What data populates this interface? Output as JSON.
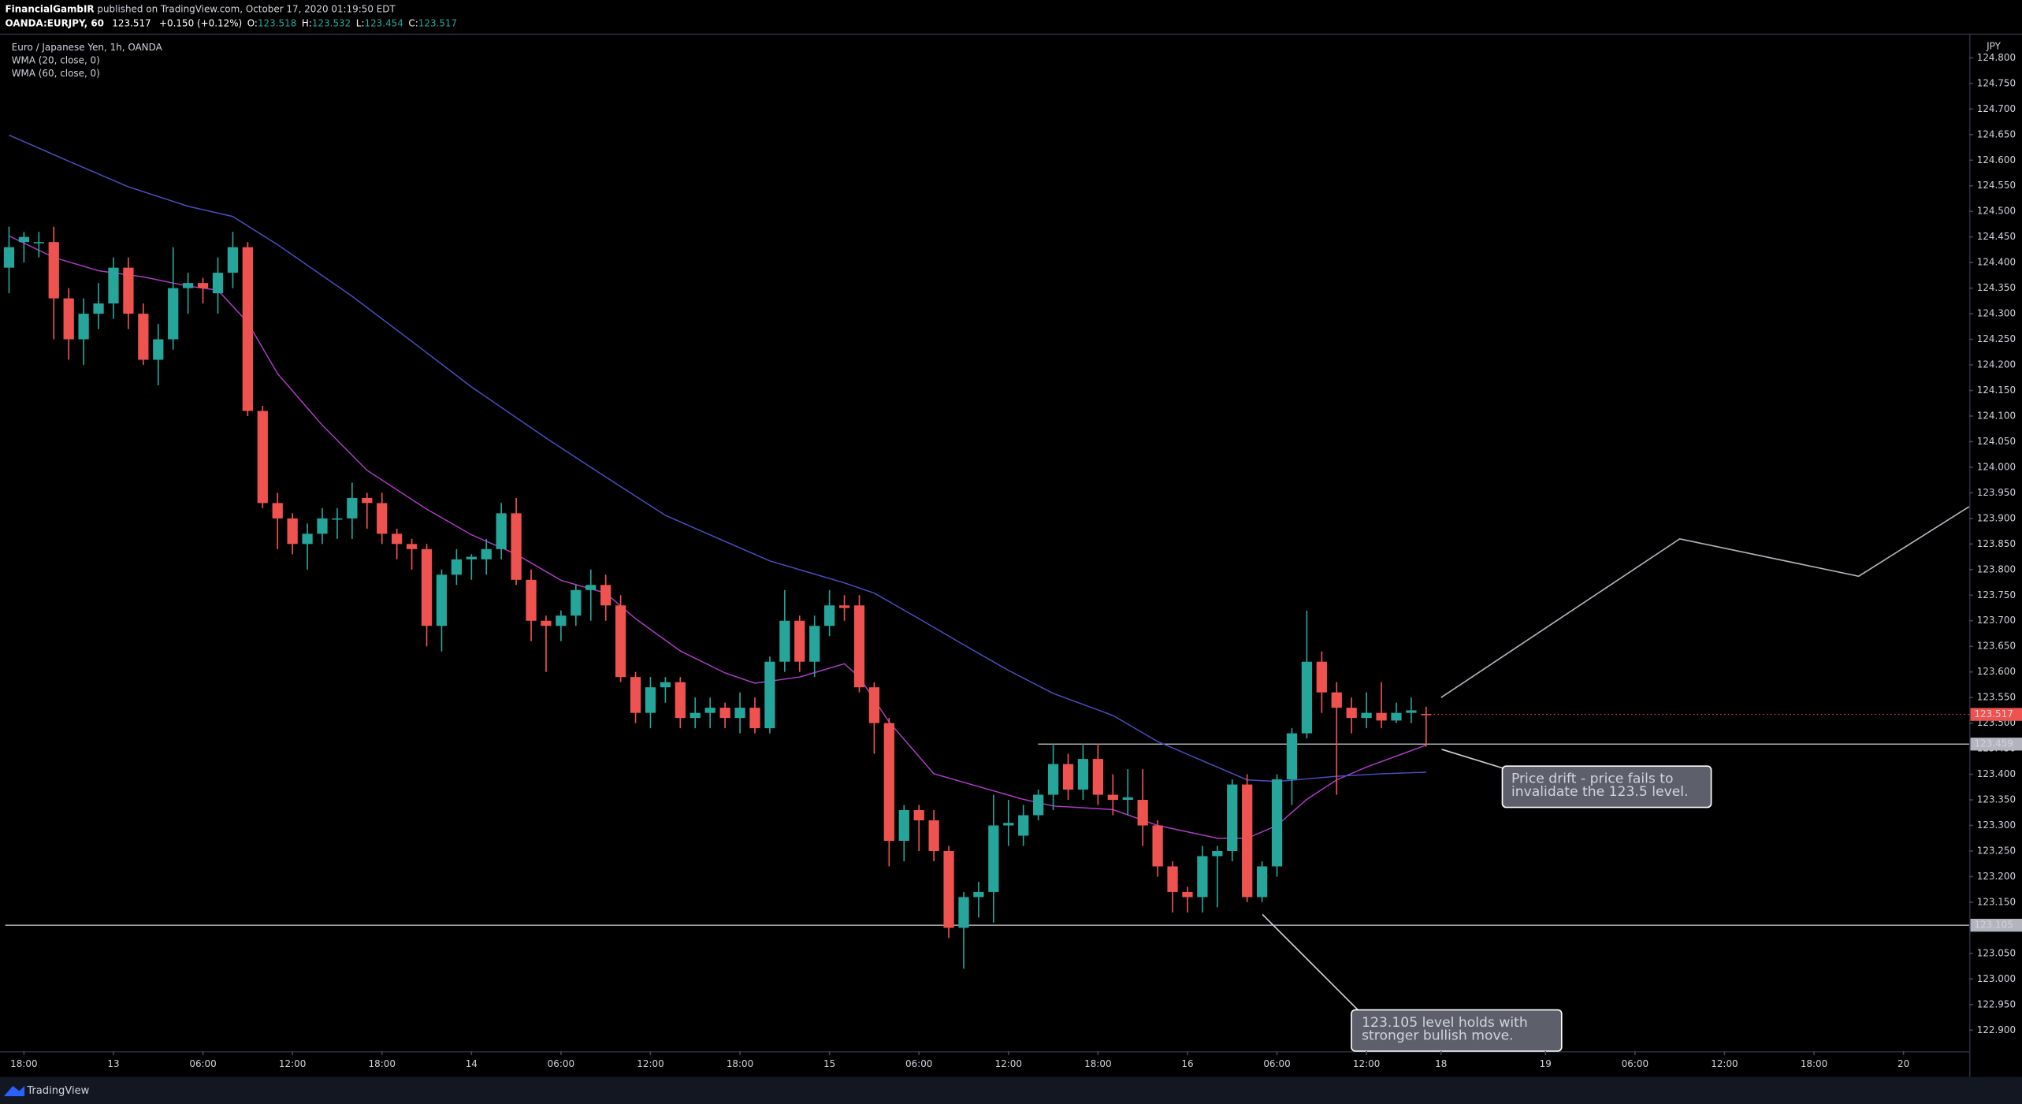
{
  "header": {
    "author": "FinancialGambIR",
    "published": "published on TradingView.com, October 17, 2020 01:19:50 EDT",
    "symbol": "OANDA:EURJPY, 60",
    "last": "123.517",
    "change": "+0.150 (+0.12%)",
    "ohlc": [
      [
        "O:",
        "123.518"
      ],
      [
        "H:",
        "123.532"
      ],
      [
        "L:",
        "123.454"
      ],
      [
        "C:",
        "123.517"
      ]
    ]
  },
  "footer": {
    "brand": "TradingView"
  },
  "chart_data": {
    "type": "candlestick",
    "title": "Euro / Japanese Yen, 1h, OANDA",
    "currency": "JPY",
    "up_color": "#26a69a",
    "down_color": "#ef5350",
    "grid": false,
    "x": [
      0,
      1,
      2,
      3,
      4,
      5,
      6,
      7,
      8,
      9,
      10,
      11,
      12,
      13,
      14,
      15,
      16,
      17,
      18,
      19,
      20,
      21,
      22,
      23,
      24,
      25,
      26,
      27,
      28,
      29,
      30,
      31,
      32,
      33,
      34,
      35,
      36,
      37,
      38,
      39,
      40,
      41,
      42,
      43,
      44,
      45,
      46,
      47,
      48,
      49,
      50,
      51,
      52,
      53,
      54,
      55,
      56,
      57,
      58,
      59,
      60,
      61,
      62,
      63,
      64,
      65,
      66,
      67,
      68,
      69,
      70,
      71,
      72,
      73,
      74,
      75,
      76,
      77,
      78,
      79,
      80,
      81,
      82,
      83,
      84,
      85,
      86,
      87,
      88,
      89,
      90,
      91,
      92,
      93,
      94,
      95
    ],
    "open": [
      124.39,
      124.44,
      124.44,
      124.44,
      124.33,
      124.25,
      124.3,
      124.32,
      124.39,
      124.3,
      124.21,
      124.25,
      124.35,
      124.36,
      124.34,
      124.38,
      124.43,
      124.11,
      123.93,
      123.9,
      123.85,
      123.87,
      123.9,
      123.9,
      123.94,
      123.93,
      123.87,
      123.85,
      123.84,
      123.69,
      123.79,
      123.82,
      123.82,
      123.84,
      123.91,
      123.78,
      123.7,
      123.69,
      123.71,
      123.76,
      123.77,
      123.73,
      123.59,
      123.52,
      123.57,
      123.58,
      123.51,
      123.52,
      123.53,
      123.51,
      123.53,
      123.49,
      123.62,
      123.7,
      123.62,
      123.69,
      123.73,
      123.73,
      123.57,
      123.5,
      123.27,
      123.33,
      123.31,
      123.25,
      123.1,
      123.16,
      123.17,
      123.3,
      123.28,
      123.32,
      123.36,
      123.42,
      123.37,
      123.43,
      123.36,
      123.35,
      123.35,
      123.3,
      123.22,
      123.17,
      123.16,
      123.24,
      123.25,
      123.38,
      123.16,
      123.22,
      123.39,
      123.48,
      123.62,
      123.56,
      123.53,
      123.51,
      123.52,
      123.505,
      123.52,
      123.518
    ],
    "high": [
      124.47,
      124.46,
      124.46,
      124.47,
      124.35,
      124.33,
      124.36,
      124.41,
      124.41,
      124.32,
      124.28,
      124.43,
      124.38,
      124.37,
      124.41,
      124.46,
      124.44,
      124.12,
      123.95,
      123.91,
      123.89,
      123.92,
      123.92,
      123.97,
      123.95,
      123.95,
      123.88,
      123.86,
      123.85,
      123.8,
      123.84,
      123.83,
      123.86,
      123.93,
      123.94,
      123.8,
      123.71,
      123.72,
      123.77,
      123.8,
      123.79,
      123.75,
      123.6,
      123.59,
      123.59,
      123.59,
      123.55,
      123.55,
      123.54,
      123.56,
      123.55,
      123.63,
      123.76,
      123.71,
      123.71,
      123.76,
      123.75,
      123.75,
      123.58,
      123.51,
      123.34,
      123.34,
      123.33,
      123.26,
      123.17,
      123.19,
      123.36,
      123.35,
      123.34,
      123.37,
      123.46,
      123.44,
      123.46,
      123.46,
      123.4,
      123.41,
      123.41,
      123.31,
      123.23,
      123.18,
      123.26,
      123.26,
      123.39,
      123.4,
      123.23,
      123.4,
      123.49,
      123.72,
      123.64,
      123.58,
      123.55,
      123.56,
      123.58,
      123.54,
      123.55,
      123.532
    ],
    "low": [
      124.34,
      124.4,
      124.41,
      124.25,
      124.21,
      124.2,
      124.27,
      124.29,
      124.27,
      124.2,
      124.16,
      124.23,
      124.3,
      124.32,
      124.3,
      124.35,
      124.1,
      123.92,
      123.84,
      123.83,
      123.8,
      123.85,
      123.86,
      123.86,
      123.88,
      123.85,
      123.82,
      123.8,
      123.65,
      123.64,
      123.77,
      123.78,
      123.79,
      123.82,
      123.77,
      123.66,
      123.6,
      123.66,
      123.69,
      123.7,
      123.7,
      123.58,
      123.5,
      123.49,
      123.54,
      123.49,
      123.49,
      123.49,
      123.49,
      123.48,
      123.48,
      123.48,
      123.6,
      123.6,
      123.59,
      123.67,
      123.7,
      123.56,
      123.44,
      123.22,
      123.23,
      123.25,
      123.23,
      123.08,
      123.02,
      123.12,
      123.11,
      123.26,
      123.26,
      123.31,
      123.33,
      123.35,
      123.35,
      123.34,
      123.32,
      123.32,
      123.26,
      123.2,
      123.13,
      123.13,
      123.13,
      123.14,
      123.23,
      123.15,
      123.15,
      123.2,
      123.34,
      123.47,
      123.52,
      123.36,
      123.48,
      123.49,
      123.49,
      123.5,
      123.5,
      123.454
    ],
    "close": [
      124.43,
      124.45,
      124.44,
      124.33,
      124.25,
      124.3,
      124.32,
      124.39,
      124.3,
      124.21,
      124.25,
      124.35,
      124.36,
      124.35,
      124.38,
      124.43,
      124.11,
      123.93,
      123.9,
      123.85,
      123.87,
      123.9,
      123.9,
      123.94,
      123.93,
      123.87,
      123.85,
      123.84,
      123.69,
      123.79,
      123.82,
      123.825,
      123.84,
      123.91,
      123.78,
      123.7,
      123.69,
      123.71,
      123.76,
      123.77,
      123.73,
      123.59,
      123.52,
      123.57,
      123.58,
      123.51,
      123.52,
      123.53,
      123.51,
      123.53,
      123.49,
      123.62,
      123.7,
      123.62,
      123.69,
      123.73,
      123.725,
      123.57,
      123.5,
      123.27,
      123.33,
      123.31,
      123.25,
      123.1,
      123.16,
      123.17,
      123.3,
      123.305,
      123.32,
      123.36,
      123.42,
      123.37,
      123.43,
      123.36,
      123.35,
      123.355,
      123.3,
      123.22,
      123.17,
      123.16,
      123.24,
      123.25,
      123.38,
      123.16,
      123.22,
      123.39,
      123.48,
      123.62,
      123.56,
      123.53,
      123.51,
      123.52,
      123.505,
      123.52,
      123.525,
      123.517
    ],
    "lines": [
      {
        "name": "WMA (20, close, 0)",
        "color": "#b03cc8",
        "x": [
          0,
          3,
          6,
          9,
          12,
          14,
          16,
          18,
          21,
          24,
          28,
          31,
          34,
          37,
          40,
          42,
          45,
          48,
          50,
          53,
          56,
          57,
          59,
          62,
          65,
          68,
          70,
          74,
          77,
          81,
          83,
          85,
          87,
          89,
          91,
          95
        ],
        "values": [
          124.452,
          124.41,
          124.384,
          124.372,
          124.354,
          124.346,
          124.283,
          124.183,
          124.082,
          123.994,
          123.918,
          123.868,
          123.83,
          123.779,
          123.754,
          123.704,
          123.641,
          123.598,
          123.578,
          123.59,
          123.616,
          123.59,
          123.502,
          123.401,
          123.376,
          123.351,
          123.338,
          123.331,
          123.3,
          123.275,
          123.275,
          123.3,
          123.351,
          123.389,
          123.414,
          123.457
        ]
      },
      {
        "name": "WMA (60, close, 0)",
        "color": "#4a4fc4",
        "x": [
          0,
          4,
          8,
          12,
          15,
          18,
          23,
          27,
          31,
          36,
          40,
          44,
          48,
          51,
          56,
          58,
          61,
          64,
          67,
          70,
          74,
          77,
          81,
          83,
          85,
          89,
          92,
          95
        ],
        "values": [
          124.649,
          124.598,
          124.548,
          124.51,
          124.49,
          124.435,
          124.334,
          124.246,
          124.157,
          124.057,
          123.981,
          123.906,
          123.855,
          123.817,
          123.774,
          123.754,
          123.704,
          123.653,
          123.603,
          123.558,
          123.515,
          123.464,
          123.414,
          123.389,
          123.386,
          123.396,
          123.401,
          123.404
        ]
      }
    ],
    "projection": {
      "color": "#b2b5be",
      "x": [
        96,
        112,
        124,
        131.4
      ],
      "values": [
        123.55,
        123.86,
        123.787,
        123.923
      ]
    },
    "hlines": [
      {
        "value": 123.459,
        "label": "123.459"
      },
      {
        "value": 123.105,
        "label": "123.105"
      }
    ],
    "last_price": {
      "value": 123.517,
      "label": "123.517"
    },
    "annotations": [
      {
        "lines": [
          "Price drift - price fails to",
          "invalidate the 123.5 level."
        ]
      },
      {
        "lines": [
          "123.105 level holds with",
          "stronger bullish move."
        ]
      }
    ],
    "xlim": [
      -0.26,
      131.4
    ],
    "xticks": [
      {
        "value": 1,
        "label": "18:00"
      },
      {
        "value": 7,
        "label": "13"
      },
      {
        "value": 13,
        "label": "06:00"
      },
      {
        "value": 19,
        "label": "12:00"
      },
      {
        "value": 25,
        "label": "18:00"
      },
      {
        "value": 31,
        "label": "14"
      },
      {
        "value": 37,
        "label": "06:00"
      },
      {
        "value": 43,
        "label": "12:00"
      },
      {
        "value": 49,
        "label": "18:00"
      },
      {
        "value": 55,
        "label": "15"
      },
      {
        "value": 61,
        "label": "06:00"
      },
      {
        "value": 67,
        "label": "12:00"
      },
      {
        "value": 73,
        "label": "18:00"
      },
      {
        "value": 79,
        "label": "16"
      },
      {
        "value": 85,
        "label": "06:00"
      },
      {
        "value": 91,
        "label": "12:00"
      },
      {
        "value": 96,
        "label": "18"
      },
      {
        "value": 103,
        "label": "19"
      },
      {
        "value": 109,
        "label": "06:00"
      },
      {
        "value": 115,
        "label": "12:00"
      },
      {
        "value": 121,
        "label": "18:00"
      },
      {
        "value": 127,
        "label": "20"
      }
    ],
    "ylim": [
      122.859,
      124.845
    ],
    "yticks": [
      {
        "value": 122.9,
        "label": "122.900"
      },
      {
        "value": 122.95,
        "label": "122.950"
      },
      {
        "value": 123,
        "label": "123.000"
      },
      {
        "value": 123.05,
        "label": "123.050"
      },
      {
        "value": 123.1,
        "label": "123.100"
      },
      {
        "value": 123.15,
        "label": "123.150"
      },
      {
        "value": 123.2,
        "label": "123.200"
      },
      {
        "value": 123.25,
        "label": "123.250"
      },
      {
        "value": 123.3,
        "label": "123.300"
      },
      {
        "value": 123.35,
        "label": "123.350"
      },
      {
        "value": 123.4,
        "label": "123.400"
      },
      {
        "value": 123.45,
        "label": "123.450"
      },
      {
        "value": 123.5,
        "label": "123.500"
      },
      {
        "value": 123.55,
        "label": "123.550"
      },
      {
        "value": 123.6,
        "label": "123.600"
      },
      {
        "value": 123.65,
        "label": "123.650"
      },
      {
        "value": 123.7,
        "label": "123.700"
      },
      {
        "value": 123.75,
        "label": "123.750"
      },
      {
        "value": 123.8,
        "label": "123.800"
      },
      {
        "value": 123.85,
        "label": "123.850"
      },
      {
        "value": 123.9,
        "label": "123.900"
      },
      {
        "value": 123.95,
        "label": "123.950"
      },
      {
        "value": 124,
        "label": "124.000"
      },
      {
        "value": 124.05,
        "label": "124.050"
      },
      {
        "value": 124.1,
        "label": "124.100"
      },
      {
        "value": 124.15,
        "label": "124.150"
      },
      {
        "value": 124.2,
        "label": "124.200"
      },
      {
        "value": 124.25,
        "label": "124.250"
      },
      {
        "value": 124.3,
        "label": "124.300"
      },
      {
        "value": 124.35,
        "label": "124.350"
      },
      {
        "value": 124.4,
        "label": "124.400"
      },
      {
        "value": 124.45,
        "label": "124.450"
      },
      {
        "value": 124.5,
        "label": "124.500"
      },
      {
        "value": 124.55,
        "label": "124.550"
      },
      {
        "value": 124.6,
        "label": "124.600"
      },
      {
        "value": 124.65,
        "label": "124.650"
      },
      {
        "value": 124.7,
        "label": "124.700"
      },
      {
        "value": 124.75,
        "label": "124.750"
      },
      {
        "value": 124.8,
        "label": "124.800"
      }
    ]
  }
}
